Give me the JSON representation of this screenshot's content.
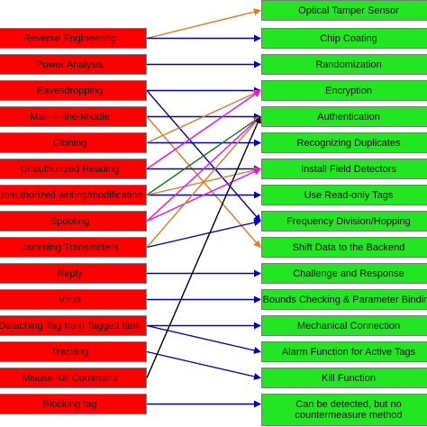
{
  "colors": {
    "threat_box": "#ff0000",
    "countermeasure_box": "#22e622",
    "arrow_blue": "#0000cc",
    "arrow_orange": "#e8781a",
    "arrow_magenta": "#ff00ff",
    "arrow_green": "#107c10",
    "arrow_black": "#000000"
  },
  "threats": [
    "Reverse Engineering",
    "Power Analysis",
    "Eavesdropping",
    "Man-in-the-Middle",
    "Cloning",
    "Unauthorized Reading",
    "Unauthorized writing/modification",
    "Spoofing",
    "Jamming Transmitters",
    "Reply",
    "Virus",
    "Detaching Tag from Tagged Item",
    "Tracking",
    "Misuse Kill Command",
    "Blocking tag"
  ],
  "countermeasures": [
    "Optical Tamper Sensor",
    "Chip Coating",
    "Randomization",
    "Encryption",
    "Authentication",
    "Recognizing Duplicates",
    "Install Field Detectors",
    "Use Read-only Tags",
    "Frequency Division/Hopping",
    "Shift Data to the Backend",
    "Challenge and Response",
    "Bounds Checking & Parameter Binding",
    "Mechanical Connection",
    "Alarm Function for Active Tags",
    "Kill Function",
    "Can be detected, but no countermeasure method"
  ],
  "links": [
    {
      "from": 0,
      "to": 0,
      "color": "orange"
    },
    {
      "from": 0,
      "to": 1,
      "color": "blue"
    },
    {
      "from": 1,
      "to": 2,
      "color": "blue"
    },
    {
      "from": 2,
      "to": 3,
      "color": "blue"
    },
    {
      "from": 2,
      "to": 8,
      "color": "blue"
    },
    {
      "from": 3,
      "to": 4,
      "color": "blue"
    },
    {
      "from": 3,
      "to": 9,
      "color": "orange"
    },
    {
      "from": 4,
      "to": 5,
      "color": "blue"
    },
    {
      "from": 4,
      "to": 3,
      "color": "orange"
    },
    {
      "from": 5,
      "to": 3,
      "color": "magenta"
    },
    {
      "from": 5,
      "to": 6,
      "color": "blue"
    },
    {
      "from": 6,
      "to": 4,
      "color": "green"
    },
    {
      "from": 6,
      "to": 7,
      "color": "blue"
    },
    {
      "from": 6,
      "to": 6,
      "color": "orange"
    },
    {
      "from": 7,
      "to": 4,
      "color": "magenta"
    },
    {
      "from": 7,
      "to": 6,
      "color": "magenta"
    },
    {
      "from": 8,
      "to": 8,
      "color": "blue"
    },
    {
      "from": 8,
      "to": 4,
      "color": "orange"
    },
    {
      "from": 9,
      "to": 10,
      "color": "blue"
    },
    {
      "from": 10,
      "to": 11,
      "color": "blue"
    },
    {
      "from": 11,
      "to": 12,
      "color": "blue"
    },
    {
      "from": 11,
      "to": 13,
      "color": "blue"
    },
    {
      "from": 12,
      "to": 14,
      "color": "blue"
    },
    {
      "from": 13,
      "to": 4,
      "color": "black"
    },
    {
      "from": 14,
      "to": 15,
      "color": "blue"
    }
  ]
}
